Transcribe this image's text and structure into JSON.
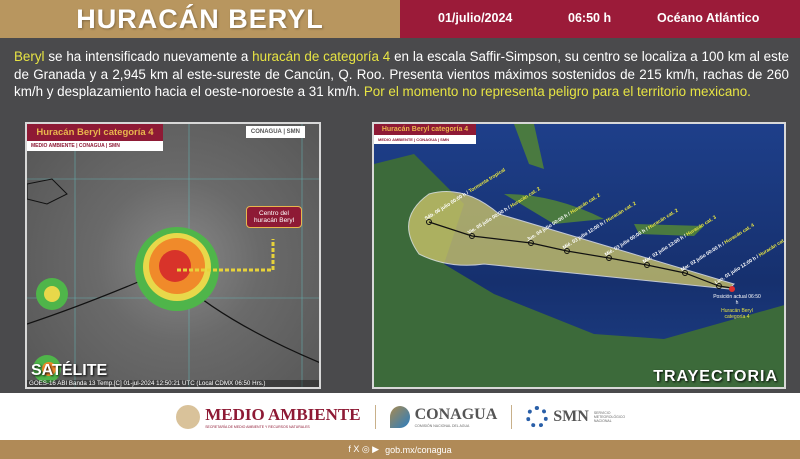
{
  "header": {
    "title": "HURACÁN BERYL",
    "date": "01/julio/2024",
    "time": "06:50 h",
    "ocean": "Océano Atlántico"
  },
  "bulletin": {
    "p1": "Beryl",
    "p2": " se ha intensificado nuevamente a ",
    "p3": "huracán de categoría 4",
    "p4": " en la escala Saffir-Simpson, su centro se localiza a 100 km al este de Granada y a 2,945 km al este-sureste de Cancún, Q. Roo. Presenta vientos máximos sostenidos de 215 km/h, rachas de 260 km/h y desplazamiento hacia el oeste-noroeste a 31 km/h. ",
    "p5": "Por el momento no representa peligro para el territorio mexicano."
  },
  "satellite": {
    "tag_title": "Huracán Beryl categoría 4",
    "tag_logos": "MEDIO AMBIENTE | CONAGUA | SMN",
    "corner_logos": "CONAGUA | SMN",
    "callout": "Centro del huracán Beryl",
    "label": "SATÉLITE",
    "caption": "GOES-16 ABI Banda 13 Temp.[C] 01-jul-2024 12:50:21 UTC (Local CDMX 06:50 Hrs.)"
  },
  "trajectory": {
    "tag_title": "Huracán Beryl categoría 4",
    "tag_logos": "MEDIO AMBIENTE | CONAGUA | SMN",
    "label": "TRAYECTORIA",
    "points": [
      {
        "when": "Sáb. 06 julio 00:00 h",
        "cat": "Tormenta tropical"
      },
      {
        "when": "Vie. 05 julio 00:00 h",
        "cat": "Huracán cat. 2"
      },
      {
        "when": "Jue. 04 julio 00:00 h",
        "cat": "Huracán cat. 2"
      },
      {
        "when": "Mié. 03 julio 12:00 h",
        "cat": "Huracán cat. 2"
      },
      {
        "when": "Mié. 03 julio 00:00 h",
        "cat": "Huracán cat. 2"
      },
      {
        "when": "Mar. 02 julio 12:00 h",
        "cat": "Huracán cat. 3"
      },
      {
        "when": "Mar. 02 julio 00:00 h",
        "cat": "Huracán cat. 4"
      },
      {
        "when": "Lun. 01 julio 12:00 h",
        "cat": "Huracán cat. 4"
      }
    ],
    "current": "Posición actual 06:50 h",
    "current_storm": "Huracán Beryl categoría 4"
  },
  "footer": {
    "medio": "MEDIO AMBIENTE",
    "medio_sub": "SECRETARÍA DE MEDIO AMBIENTE Y RECURSOS NATURALES",
    "conagua": "CONAGUA",
    "conagua_sub": "COMISIÓN NACIONAL DEL AGUA",
    "smn": "SMN",
    "smn_sub": "SERVICIO METEOROLÓGICO NACIONAL",
    "social": "f X ◎ ▶",
    "url": "gob.mx/conagua"
  },
  "colors": {
    "tan": "#b8965f",
    "maroon": "#9b1b39",
    "highlight": "#e7e443",
    "panel_bg": "#4a4a4c"
  }
}
